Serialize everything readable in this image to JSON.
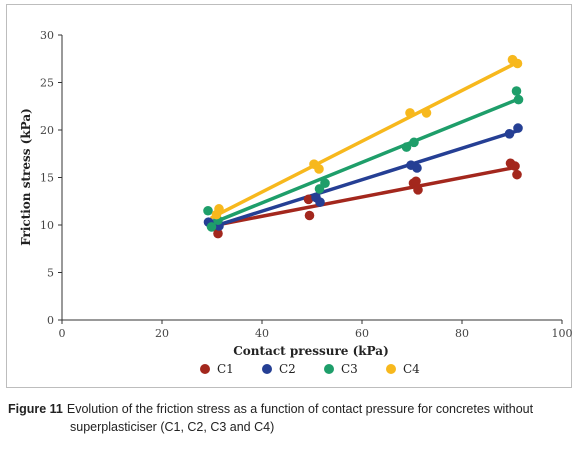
{
  "chart_data": {
    "type": "scatter",
    "xlabel": "Contact pressure (kPa)",
    "ylabel": "Friction stress (kPa)",
    "xlim": [
      0,
      100
    ],
    "ylim": [
      0,
      30
    ],
    "xticks": [
      0,
      20,
      40,
      60,
      80,
      100
    ],
    "yticks": [
      0,
      5,
      10,
      15,
      20,
      25,
      30
    ],
    "grid": false,
    "legend_position": "bottom-center",
    "series": [
      {
        "name": "C1",
        "color": "#a3271d",
        "points": [
          [
            30.7,
            9.8
          ],
          [
            31.2,
            9.1
          ],
          [
            49.3,
            12.7
          ],
          [
            49.5,
            11.0
          ],
          [
            70.3,
            14.4
          ],
          [
            70.8,
            14.6
          ],
          [
            71.2,
            13.7
          ],
          [
            89.7,
            16.5
          ],
          [
            90.6,
            16.2
          ],
          [
            91.0,
            15.3
          ]
        ],
        "fit": [
          [
            30,
            9.9
          ],
          [
            91,
            16.1
          ]
        ]
      },
      {
        "name": "C2",
        "color": "#253f94",
        "points": [
          [
            29.3,
            10.3
          ],
          [
            30.2,
            10.1
          ],
          [
            31.4,
            9.9
          ],
          [
            50.8,
            12.9
          ],
          [
            51.6,
            12.4
          ],
          [
            69.8,
            16.3
          ],
          [
            71.0,
            16.0
          ],
          [
            89.5,
            19.6
          ],
          [
            91.2,
            20.2
          ]
        ],
        "fit": [
          [
            30,
            9.8
          ],
          [
            91,
            19.9
          ]
        ]
      },
      {
        "name": "C3",
        "color": "#1e9e6a",
        "points": [
          [
            29.2,
            11.5
          ],
          [
            29.9,
            9.8
          ],
          [
            31.2,
            10.5
          ],
          [
            51.5,
            13.8
          ],
          [
            52.6,
            14.4
          ],
          [
            68.9,
            18.2
          ],
          [
            70.4,
            18.7
          ],
          [
            90.9,
            24.1
          ],
          [
            91.3,
            23.2
          ]
        ],
        "fit": [
          [
            30,
            10.2
          ],
          [
            91,
            23.2
          ]
        ]
      },
      {
        "name": "C4",
        "color": "#f7b81d",
        "points": [
          [
            30.9,
            11.1
          ],
          [
            31.4,
            11.7
          ],
          [
            50.4,
            16.4
          ],
          [
            51.4,
            15.9
          ],
          [
            69.6,
            21.8
          ],
          [
            72.9,
            21.8
          ],
          [
            90.1,
            27.4
          ],
          [
            91.1,
            27.0
          ]
        ],
        "fit": [
          [
            30,
            10.8
          ],
          [
            91,
            27.1
          ]
        ]
      }
    ]
  },
  "caption": {
    "figure_label": "Figure 11",
    "text_line1": "Evolution of the friction stress as a function of contact pressure for concretes without",
    "text_line2": "superplasticiser (C1, C2, C3 and C4)"
  }
}
